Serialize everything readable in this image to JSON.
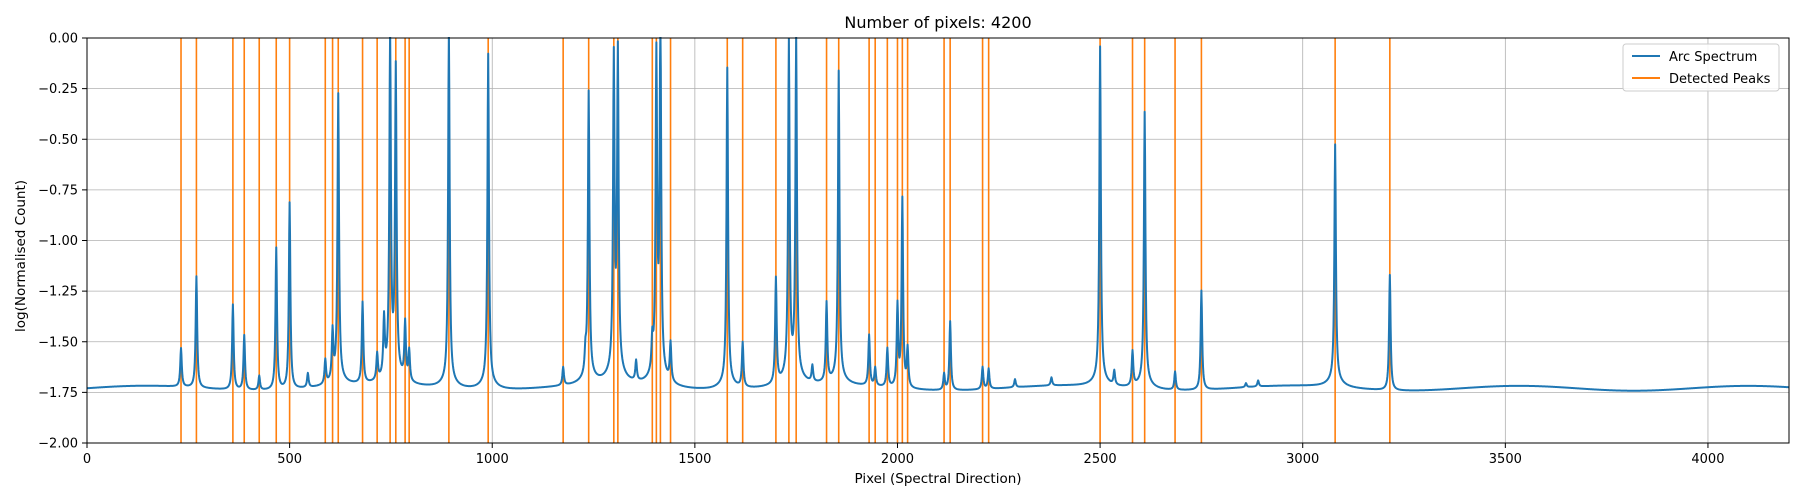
{
  "chart_data": {
    "type": "line",
    "title": "Number of pixels: 4200",
    "xlabel": "Pixel (Spectral Direction)",
    "ylabel": "log(Normalised Count)",
    "xlim": [
      0,
      4200
    ],
    "ylim": [
      -2.0,
      0.0
    ],
    "xticks": [
      0,
      500,
      1000,
      1500,
      2000,
      2500,
      3000,
      3500,
      4000
    ],
    "yticks": [
      0.0,
      -0.25,
      -0.5,
      -0.75,
      -1.0,
      -1.25,
      -1.5,
      -1.75,
      -2.0
    ],
    "xtick_labels": [
      "0",
      "500",
      "1000",
      "1500",
      "2000",
      "2500",
      "3000",
      "3500",
      "4000"
    ],
    "ytick_labels": [
      "0.00",
      "−0.25",
      "−0.50",
      "−0.75",
      "−1.00",
      "−1.25",
      "−1.50",
      "−1.75",
      "−2.00"
    ],
    "grid": true,
    "legend_position": "top-right",
    "series": [
      {
        "name": "Arc Spectrum",
        "color": "#1f77b4",
        "baseline": -1.73,
        "peaks": [
          [
            232,
            -1.54
          ],
          [
            270,
            -1.18
          ],
          [
            360,
            -1.31
          ],
          [
            388,
            -1.46
          ],
          [
            425,
            -1.66
          ],
          [
            467,
            -1.03
          ],
          [
            500,
            -0.81
          ],
          [
            545,
            -1.66
          ],
          [
            588,
            -1.61
          ],
          [
            606,
            -1.49
          ],
          [
            620,
            -0.33
          ],
          [
            680,
            -1.33
          ],
          [
            716,
            -1.6
          ],
          [
            733,
            -1.45
          ],
          [
            748,
            -0.06
          ],
          [
            762,
            -0.24
          ],
          [
            785,
            -1.45
          ],
          [
            795,
            -1.58
          ],
          [
            893,
            0.0
          ],
          [
            990,
            -0.11
          ],
          [
            1175,
            -1.64
          ],
          [
            1230,
            -1.63
          ],
          [
            1238,
            -0.33
          ],
          [
            1300,
            -0.21
          ],
          [
            1310,
            -0.18
          ],
          [
            1355,
            -1.63
          ],
          [
            1395,
            -1.58
          ],
          [
            1405,
            -0.19
          ],
          [
            1415,
            0.0
          ],
          [
            1440,
            -1.54
          ],
          [
            1580,
            -0.18
          ],
          [
            1618,
            -1.51
          ],
          [
            1700,
            -1.21
          ],
          [
            1732,
            -0.1
          ],
          [
            1750,
            -0.08
          ],
          [
            1790,
            -1.65
          ],
          [
            1825,
            -1.34
          ],
          [
            1855,
            -0.22
          ],
          [
            1930,
            -1.48
          ],
          [
            1945,
            -1.64
          ],
          [
            1975,
            -1.54
          ],
          [
            2000,
            -1.33
          ],
          [
            2012,
            -0.8
          ],
          [
            2025,
            -1.54
          ],
          [
            2115,
            -1.65
          ],
          [
            2130,
            -1.39
          ],
          [
            2210,
            -1.62
          ],
          [
            2225,
            -1.63
          ],
          [
            2290,
            -1.69
          ],
          [
            2380,
            -1.69
          ],
          [
            2500,
            -0.09
          ],
          [
            2535,
            -1.66
          ],
          [
            2580,
            -1.56
          ],
          [
            2610,
            -0.4
          ],
          [
            2685,
            -1.64
          ],
          [
            2750,
            -1.24
          ],
          [
            2860,
            -1.71
          ],
          [
            2890,
            -1.7
          ],
          [
            3080,
            -0.57
          ],
          [
            3215,
            -1.16
          ],
          [
            3500,
            -1.73
          ]
        ]
      },
      {
        "name": "Detected Peaks",
        "color": "#ff7f0e",
        "x": [
          232,
          270,
          360,
          388,
          425,
          467,
          500,
          588,
          606,
          620,
          680,
          716,
          748,
          762,
          785,
          795,
          893,
          990,
          1175,
          1238,
          1300,
          1310,
          1395,
          1405,
          1415,
          1440,
          1580,
          1618,
          1700,
          1732,
          1750,
          1825,
          1855,
          1930,
          1945,
          1975,
          2000,
          2012,
          2025,
          2115,
          2130,
          2210,
          2225,
          2500,
          2580,
          2610,
          2685,
          2750,
          3080,
          3215
        ]
      }
    ]
  }
}
